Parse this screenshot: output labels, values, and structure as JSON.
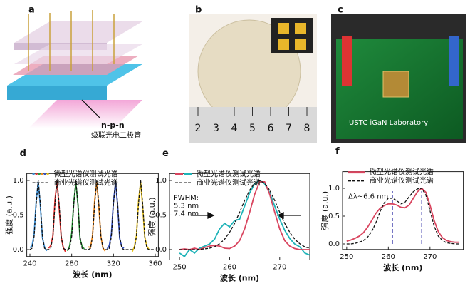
{
  "panels": {
    "a": {
      "label": "a",
      "annotation": "n-p-n",
      "caption": "级联光电二极管"
    },
    "b": {
      "label": "b",
      "ruler": [
        2,
        3,
        4,
        5,
        6,
        7,
        8
      ]
    },
    "c": {
      "label": "c",
      "caption": "USTC iGaN Laboratory"
    }
  },
  "chart_data": [
    {
      "type": "line",
      "panel_label": "d",
      "ylabel": "强度 (a.u.)",
      "xlabel": "波长 (nm)",
      "xlim": [
        237,
        363
      ],
      "ylim": [
        -0.1,
        1.1
      ],
      "xticks": [
        240,
        280,
        320,
        360
      ],
      "yticks": [
        {
          "value": 0,
          "label": "0.0"
        },
        {
          "value": 0.5,
          "label": "0.5"
        },
        {
          "value": 1,
          "label": "1.0"
        }
      ],
      "legend": [
        {
          "name": "微型光谱仪测试光谱",
          "colors": [
            "#3a8fd8",
            "#e0302e",
            "#2a9a3a",
            "#f08a1e",
            "#3550c0",
            "#e8c21a"
          ]
        },
        {
          "name": "商业光谱仪测试光谱",
          "color": "#111111",
          "dash": true
        }
      ],
      "series": [
        {
          "color": "#3a8fd8",
          "x": [
            240,
            242,
            244,
            246,
            248,
            250,
            252,
            254,
            256
          ],
          "values": [
            0.03,
            0.05,
            0.22,
            0.7,
            0.98,
            0.63,
            0.17,
            0.04,
            -0.02
          ]
        },
        {
          "color": "#e0302e",
          "x": [
            258,
            260,
            262,
            264,
            266,
            268,
            270,
            272,
            274
          ],
          "values": [
            0.02,
            0.06,
            0.2,
            0.72,
            0.99,
            0.6,
            0.18,
            0.03,
            -0.03
          ]
        },
        {
          "color": "#2a9a3a",
          "x": [
            276,
            278,
            280,
            282,
            284,
            286,
            288,
            290,
            292
          ],
          "values": [
            -0.02,
            0.05,
            0.24,
            0.68,
            0.97,
            0.65,
            0.15,
            0.05,
            0.01
          ]
        },
        {
          "color": "#f08a1e",
          "x": [
            296,
            298,
            300,
            302,
            304,
            306,
            308,
            310,
            312
          ],
          "values": [
            0.04,
            0.03,
            0.21,
            0.71,
            0.98,
            0.62,
            0.19,
            0.02,
            -0.02
          ]
        },
        {
          "color": "#3550c0",
          "x": [
            314,
            316,
            318,
            320,
            322,
            324,
            326,
            328,
            330
          ],
          "values": [
            0.01,
            0.06,
            0.23,
            0.69,
            0.97,
            0.64,
            0.16,
            0.04,
            0.02
          ]
        },
        {
          "color": "#e8c21a",
          "x": [
            338,
            340,
            342,
            344,
            346,
            348,
            350,
            352,
            354
          ],
          "values": [
            -0.03,
            0.04,
            0.2,
            0.7,
            0.98,
            0.61,
            0.18,
            0.05,
            0.0
          ]
        },
        {
          "color": "#111111",
          "dash": true,
          "x": [
            240,
            242,
            244,
            246,
            248,
            250,
            252,
            254,
            256,
            258,
            260,
            262,
            264,
            266,
            268,
            270,
            272,
            274,
            276,
            278,
            280,
            282,
            284,
            286,
            288,
            290,
            292,
            294,
            296,
            298,
            300,
            302,
            304,
            306,
            308,
            310,
            312,
            314,
            316,
            318,
            320,
            322,
            324,
            326,
            328,
            330,
            332,
            334,
            336,
            338,
            340,
            342,
            344,
            346,
            348,
            350,
            352,
            354,
            356,
            358,
            360
          ],
          "values": [
            0,
            0.02,
            0.19,
            0.66,
            1,
            0.66,
            0.19,
            0.02,
            0,
            0,
            0.02,
            0.19,
            0.66,
            1,
            0.66,
            0.19,
            0.02,
            0,
            0,
            0.02,
            0.19,
            0.66,
            1,
            0.66,
            0.19,
            0.02,
            0,
            0,
            0,
            0.02,
            0.19,
            0.66,
            1,
            0.66,
            0.19,
            0.02,
            0,
            0,
            0.02,
            0.19,
            0.66,
            1,
            0.66,
            0.19,
            0.02,
            0,
            0,
            0,
            0,
            0,
            0.02,
            0.19,
            0.66,
            1,
            0.66,
            0.19,
            0.02,
            0,
            0,
            0,
            0
          ]
        }
      ]
    },
    {
      "type": "line",
      "panel_label": "e",
      "ylabel": "强度 (a.u.)",
      "xlabel": "波长 (nm)",
      "xlim": [
        248,
        276
      ],
      "ylim": [
        -0.15,
        1.1
      ],
      "xticks": [
        250,
        260,
        270
      ],
      "yticks": [
        {
          "value": 0,
          "label": "0.0"
        },
        {
          "value": 0.5,
          "label": "0.5"
        },
        {
          "value": 1,
          "label": "1.0"
        }
      ],
      "legend": [
        {
          "name": "微型光谱仪测试光谱",
          "colors": [
            "#d9455f",
            "#1fb3b8"
          ]
        },
        {
          "name": "商业光谱仪测试光谱",
          "color": "#111111",
          "dash": true
        }
      ],
      "annotations": [
        {
          "text": "FWHM:",
          "color": "#111111"
        },
        {
          "text": "5.3 nm",
          "color": "#d9455f"
        },
        {
          "text": "7.4 nm",
          "color": "#1fb3b8"
        }
      ],
      "x": [
        250,
        251,
        252,
        253,
        254,
        255,
        256,
        257,
        258,
        259,
        260,
        261,
        262,
        263,
        264,
        265,
        266,
        267,
        268,
        269,
        270,
        271,
        272,
        273,
        274,
        275,
        276
      ],
      "series": [
        {
          "color": "#1fb3b8",
          "values": [
            -0.05,
            -0.1,
            0,
            -0.05,
            0.02,
            0.05,
            0.08,
            0.15,
            0.3,
            0.38,
            0.33,
            0.42,
            0.44,
            0.63,
            0.82,
            0.95,
            1,
            0.95,
            0.82,
            0.63,
            0.44,
            0.28,
            0.16,
            0.08,
            0.04,
            -0.05,
            -0.08
          ]
        },
        {
          "color": "#d9455f",
          "values": [
            0,
            0.01,
            0,
            0.02,
            0,
            0.03,
            0.05,
            0.06,
            0.05,
            0.02,
            0.015,
            0.05,
            0.13,
            0.3,
            0.54,
            0.8,
            0.98,
            0.98,
            0.8,
            0.54,
            0.3,
            0.13,
            0.05,
            0.015,
            0,
            0,
            0
          ]
        },
        {
          "color": "#111111",
          "dash": true,
          "values": [
            0,
            0,
            0,
            0,
            0.005,
            0.01,
            0.02,
            0.04,
            0.085,
            0.15,
            0.25,
            0.38,
            0.54,
            0.71,
            0.86,
            0.96,
            1,
            0.96,
            0.86,
            0.71,
            0.54,
            0.38,
            0.25,
            0.15,
            0.085,
            0.04,
            0.02
          ]
        }
      ]
    },
    {
      "type": "line",
      "panel_label": "f",
      "ylabel": "强度 (a.u.)",
      "xlabel": "波长 (nm)",
      "xlim": [
        249,
        278
      ],
      "ylim": [
        -0.1,
        1.3
      ],
      "xticks": [
        250,
        260,
        270
      ],
      "yticks": [
        {
          "value": 0,
          "label": "0.0"
        },
        {
          "value": 0.5,
          "label": "0.5"
        },
        {
          "value": 1,
          "label": "1.0"
        }
      ],
      "legend": [
        {
          "name": "微型光谱仪测试光谱",
          "colors": [
            "#d9455f"
          ]
        },
        {
          "name": "商业光谱仪测试光谱",
          "color": "#111111",
          "dash": true
        }
      ],
      "annotations": [
        {
          "text": "Δλ~6.6 nm",
          "color": "#111111"
        }
      ],
      "peak_lines": [
        261,
        268
      ],
      "peak_line_color": "#5a5ab8",
      "x": [
        250,
        251,
        252,
        253,
        254,
        255,
        256,
        257,
        258,
        259,
        260,
        261,
        262,
        263,
        264,
        265,
        266,
        267,
        268,
        269,
        270,
        271,
        272,
        273,
        274,
        275,
        276,
        277
      ],
      "series": [
        {
          "color": "#d9455f",
          "values": [
            0.05,
            0.07,
            0.1,
            0.14,
            0.2,
            0.3,
            0.42,
            0.55,
            0.64,
            0.69,
            0.72,
            0.72,
            0.7,
            0.66,
            0.65,
            0.7,
            0.82,
            0.94,
            1,
            0.93,
            0.7,
            0.42,
            0.22,
            0.11,
            0.06,
            0.04,
            0.03,
            0.03
          ]
        },
        {
          "color": "#111111",
          "dash": true,
          "values": [
            0,
            0,
            0.01,
            0.03,
            0.06,
            0.12,
            0.22,
            0.38,
            0.58,
            0.74,
            0.82,
            0.82,
            0.78,
            0.72,
            0.75,
            0.85,
            0.94,
            0.99,
            1,
            0.88,
            0.6,
            0.32,
            0.14,
            0.06,
            0.02,
            0.01,
            0,
            0
          ]
        }
      ]
    }
  ]
}
